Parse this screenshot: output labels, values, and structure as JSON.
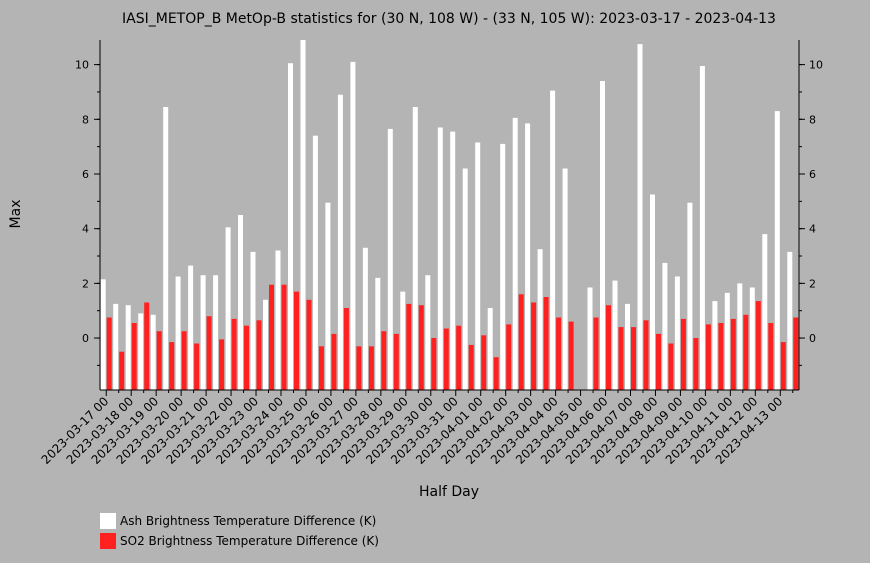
{
  "chart_data": {
    "type": "bar",
    "title": "IASI_METOP_B MetOp-B statistics for (30 N, 108 W) - (33 N, 105 W): 2023-03-17 - 2023-04-13",
    "xlabel": "Half Day",
    "ylabel": "Max",
    "ylim": [
      -1.9,
      10.9
    ],
    "yticks": [
      0,
      2,
      4,
      6,
      8,
      10
    ],
    "grid": false,
    "legend_position": "bottom-left",
    "categories": [
      "2023-03-17 00",
      "2023-03-17 12",
      "2023-03-18 00",
      "2023-03-18 12",
      "2023-03-19 00",
      "2023-03-19 12",
      "2023-03-20 00",
      "2023-03-20 12",
      "2023-03-21 00",
      "2023-03-21 12",
      "2023-03-22 00",
      "2023-03-22 12",
      "2023-03-23 00",
      "2023-03-23 12",
      "2023-03-24 00",
      "2023-03-24 12",
      "2023-03-25 00",
      "2023-03-25 12",
      "2023-03-26 00",
      "2023-03-26 12",
      "2023-03-27 00",
      "2023-03-27 12",
      "2023-03-28 00",
      "2023-03-28 12",
      "2023-03-29 00",
      "2023-03-29 12",
      "2023-03-30 00",
      "2023-03-30 12",
      "2023-03-31 00",
      "2023-03-31 12",
      "2023-04-01 00",
      "2023-04-01 12",
      "2023-04-02 00",
      "2023-04-02 12",
      "2023-04-03 00",
      "2023-04-03 12",
      "2023-04-04 00",
      "2023-04-04 12",
      "2023-04-05 00",
      "2023-04-05 12",
      "2023-04-06 00",
      "2023-04-06 12",
      "2023-04-07 00",
      "2023-04-07 12",
      "2023-04-08 00",
      "2023-04-08 12",
      "2023-04-09 00",
      "2023-04-09 12",
      "2023-04-10 00",
      "2023-04-10 12",
      "2023-04-11 00",
      "2023-04-11 12",
      "2023-04-12 00",
      "2023-04-12 12",
      "2023-04-13 00",
      "2023-04-13 12"
    ],
    "tick_labels": [
      "2023-03-17 00",
      "2023-03-18 00",
      "2023-03-19 00",
      "2023-03-20 00",
      "2023-03-21 00",
      "2023-03-22 00",
      "2023-03-23 00",
      "2023-03-24 00",
      "2023-03-25 00",
      "2023-03-26 00",
      "2023-03-27 00",
      "2023-03-28 00",
      "2023-03-29 00",
      "2023-03-30 00",
      "2023-03-31 00",
      "2023-04-01 00",
      "2023-04-02 00",
      "2023-04-03 00",
      "2023-04-04 00",
      "2023-04-05 00",
      "2023-04-06 00",
      "2023-04-07 00",
      "2023-04-08 00",
      "2023-04-09 00",
      "2023-04-10 00",
      "2023-04-11 00",
      "2023-04-12 00",
      "2023-04-13 00"
    ],
    "series": [
      {
        "name": "Ash Brightness Temperature Difference (K)",
        "color": "#ffffff",
        "values": [
          2.15,
          1.25,
          1.2,
          0.9,
          0.85,
          8.45,
          2.25,
          2.65,
          2.3,
          2.3,
          4.05,
          4.5,
          3.15,
          1.4,
          3.2,
          10.05,
          10.9,
          7.4,
          4.95,
          8.9,
          10.1,
          3.3,
          2.2,
          7.65,
          1.7,
          8.45,
          2.3,
          7.7,
          7.55,
          6.2,
          7.15,
          1.1,
          7.1,
          8.05,
          7.85,
          3.25,
          9.05,
          6.2,
          null,
          1.85,
          9.4,
          2.1,
          1.25,
          10.75,
          5.25,
          2.75,
          2.25,
          4.95,
          9.95,
          1.35,
          1.65,
          2.0,
          1.85,
          3.8,
          8.3,
          3.15
        ]
      },
      {
        "name": "SO2 Brightness Temperature Difference (K)",
        "color": "#ff2020",
        "values": [
          0.75,
          -0.5,
          0.55,
          1.3,
          0.25,
          -0.15,
          0.25,
          -0.2,
          0.8,
          -0.05,
          0.7,
          0.45,
          0.65,
          1.95,
          1.95,
          1.7,
          1.4,
          -0.3,
          0.15,
          1.1,
          -0.3,
          -0.3,
          0.25,
          0.15,
          1.25,
          1.2,
          0.0,
          0.35,
          0.45,
          -0.25,
          0.1,
          -0.7,
          0.5,
          1.6,
          1.3,
          1.5,
          0.75,
          0.6,
          null,
          0.75,
          1.2,
          0.4,
          0.4,
          0.65,
          0.15,
          -0.2,
          0.7,
          0.0,
          0.5,
          0.55,
          0.7,
          0.85,
          1.35,
          0.55,
          -0.15,
          0.75
        ]
      }
    ]
  }
}
